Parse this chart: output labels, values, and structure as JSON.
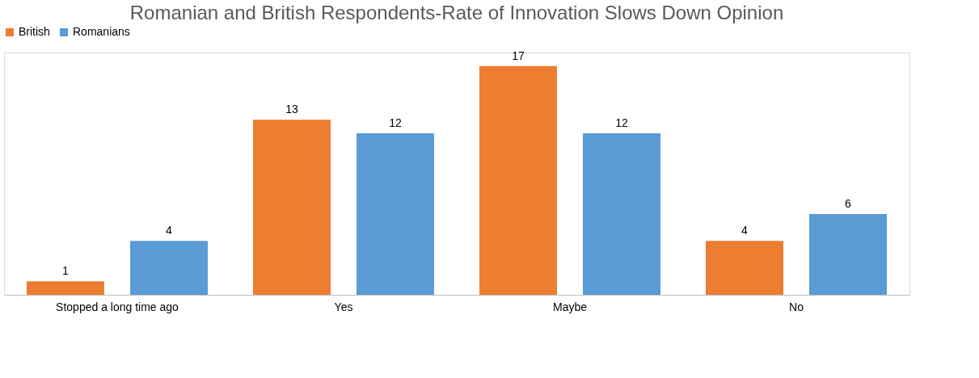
{
  "chart_data": {
    "type": "bar",
    "title": "Romanian and British Respondents-Rate of Innovation Slows Down Opinion",
    "categories": [
      "Stopped a long time ago",
      "Yes",
      "Maybe",
      "No"
    ],
    "series": [
      {
        "name": "British",
        "color": "#ed7d31",
        "values": [
          1,
          13,
          17,
          4
        ]
      },
      {
        "name": "Romanians",
        "color": "#5b9bd5",
        "values": [
          4,
          12,
          12,
          6
        ]
      }
    ],
    "data_labels": true,
    "legend": "top",
    "grid": false
  }
}
